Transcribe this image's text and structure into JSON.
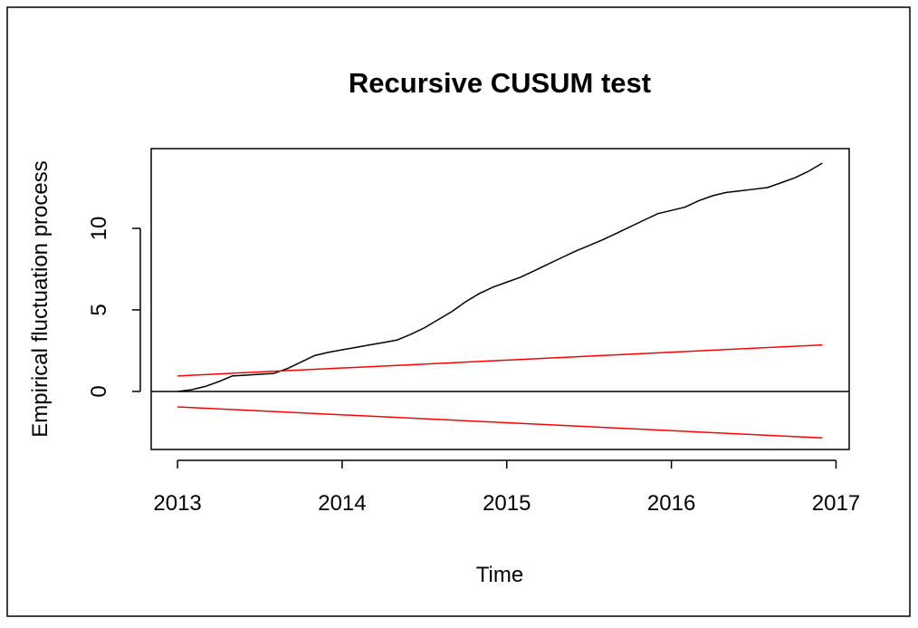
{
  "chart_data": {
    "type": "line",
    "title": "Recursive CUSUM test",
    "x_label": "Time",
    "y_label": "Empirical fluctuation process",
    "xlim": [
      2012.84,
      2017.08
    ],
    "ylim": [
      -3.56,
      14.89
    ],
    "xticks": [
      2013,
      2014,
      2015,
      2016,
      2017
    ],
    "yticks": [
      0,
      5,
      10
    ],
    "hline": 0,
    "series": [
      {
        "color": "#000000",
        "x": [
          2013,
          2013.083,
          2013.167,
          2013.25,
          2013.333,
          2013.417,
          2013.5,
          2013.583,
          2013.667,
          2013.75,
          2013.833,
          2013.917,
          2014,
          2014.083,
          2014.167,
          2014.25,
          2014.333,
          2014.417,
          2014.5,
          2014.583,
          2014.667,
          2014.75,
          2014.833,
          2014.917,
          2015,
          2015.083,
          2015.167,
          2015.25,
          2015.333,
          2015.417,
          2015.5,
          2015.583,
          2015.667,
          2015.75,
          2015.833,
          2015.917,
          2016,
          2016.083,
          2016.167,
          2016.25,
          2016.333,
          2016.417,
          2016.5,
          2016.583,
          2016.667,
          2016.75,
          2016.833,
          2016.917
        ],
        "values": [
          0,
          0.1,
          0.3,
          0.6,
          0.95,
          1.0,
          1.05,
          1.1,
          1.4,
          1.8,
          2.2,
          2.4,
          2.55,
          2.7,
          2.85,
          3.0,
          3.15,
          3.5,
          3.9,
          4.4,
          4.9,
          5.5,
          6.0,
          6.4,
          6.7,
          7.0,
          7.4,
          7.8,
          8.2,
          8.6,
          8.95,
          9.3,
          9.7,
          10.1,
          10.5,
          10.9,
          11.1,
          11.3,
          11.7,
          12.0,
          12.2,
          12.3,
          12.4,
          12.5,
          12.8,
          13.1,
          13.5,
          14.0
        ]
      },
      {
        "color": "#ff0000",
        "x": [
          2013,
          2016.917
        ],
        "values": [
          0.95,
          2.85
        ]
      },
      {
        "color": "#ff0000",
        "x": [
          2013,
          2016.917
        ],
        "values": [
          -0.95,
          -2.85
        ]
      }
    ]
  }
}
